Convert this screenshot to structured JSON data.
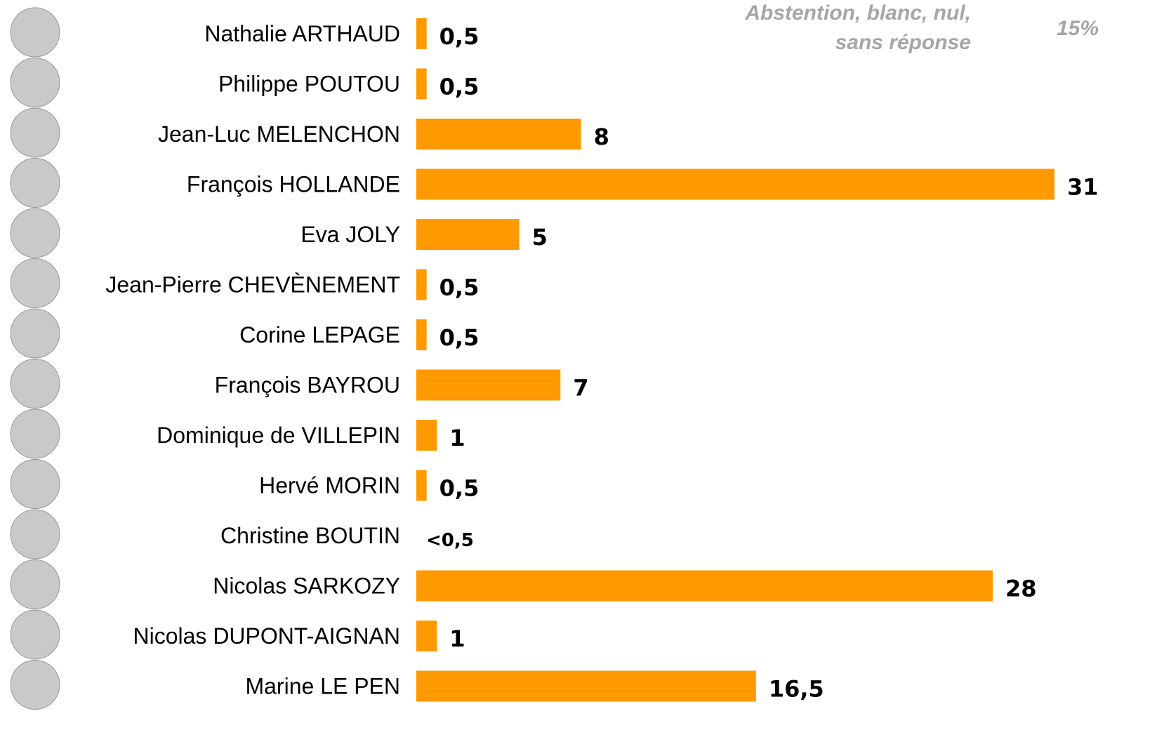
{
  "chart_data": {
    "type": "hbar",
    "categories": [
      "Nathalie ARTHAUD",
      "Philippe POUTOU",
      "Jean-Luc MELENCHON",
      "François HOLLANDE",
      "Eva JOLY",
      "Jean-Pierre CHEVÈNEMENT",
      "Corine LEPAGE",
      "François BAYROU",
      "Dominique de VILLEPIN",
      "Hervé MORIN",
      "Christine BOUTIN",
      "Nicolas SARKOZY",
      "Nicolas DUPONT-AIGNAN",
      "Marine LE PEN"
    ],
    "values": [
      0.5,
      0.5,
      8,
      31,
      5,
      0.5,
      0.5,
      7,
      1,
      0.5,
      null,
      28,
      1,
      16.5
    ],
    "value_labels": [
      "0,5",
      "0,5",
      "8",
      "31",
      "5",
      "0,5",
      "0,5",
      "7",
      "1",
      "0,5",
      "<0,5",
      "28",
      "1",
      "16,5"
    ],
    "color": "#ff9900",
    "xlim": [
      0,
      31
    ],
    "annotations": [
      "Abstention, blanc, nul,",
      "sans réponse",
      "15%"
    ]
  }
}
